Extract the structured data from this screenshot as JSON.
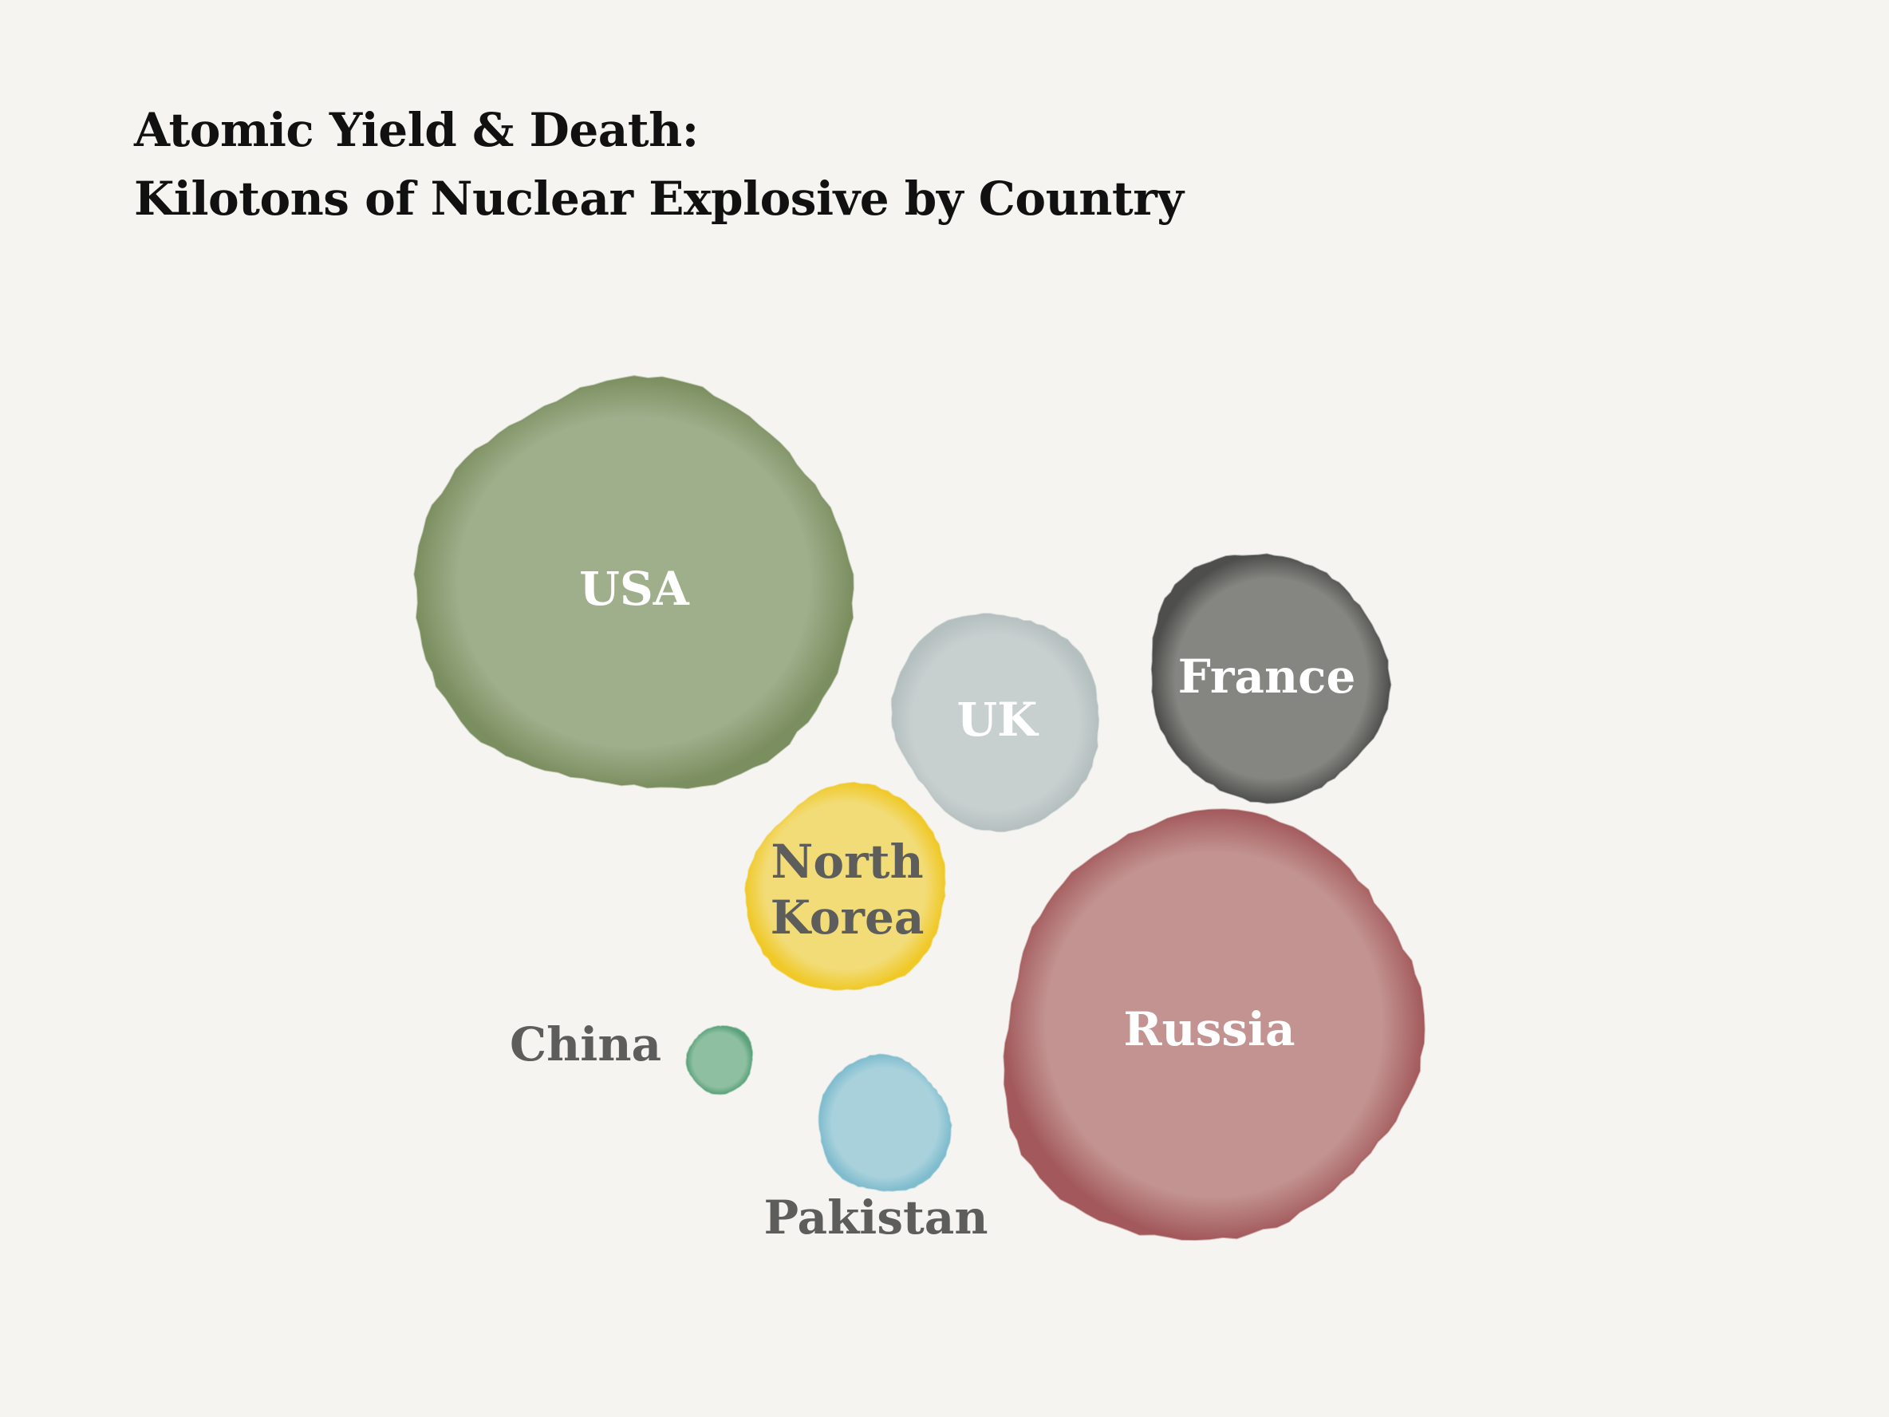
{
  "title_line1": "Atomic Yield & Death:",
  "title_line2": "Kilotons of Nuclear Explosive by Country",
  "chart_data": {
    "type": "bubble",
    "title": "Atomic Yield & Death: Kilotons of Nuclear Explosive by Country",
    "value_label": "Kilotons of Nuclear Explosive",
    "grid": false,
    "legend": "none",
    "bubbles": [
      {
        "label": "USA",
        "label_lines": [
          "USA"
        ],
        "value": 100,
        "color": "#9fae8b",
        "edge_color": "#7b8e5f",
        "label_color": "#ffffff",
        "label_position": "inside"
      },
      {
        "label": "Russia",
        "label_lines": [
          "Russia"
        ],
        "value": 100,
        "color": "#c29391",
        "edge_color": "#a3595b",
        "label_color": "#ffffff",
        "label_position": "inside"
      },
      {
        "label": "France",
        "label_lines": [
          "France"
        ],
        "value": 33,
        "color": "#858581",
        "edge_color": "#4e4e4c",
        "label_color": "#ffffff",
        "label_position": "inside"
      },
      {
        "label": "UK",
        "label_lines": [
          "UK"
        ],
        "value": 25,
        "color": "#c8d0cf",
        "edge_color": "#b4bfbf",
        "label_color": "#ffffff",
        "label_position": "inside"
      },
      {
        "label": "North Korea",
        "label_lines": [
          "North",
          "Korea"
        ],
        "value": 23,
        "color": "#f2dc78",
        "edge_color": "#f0c928",
        "label_color": "#5d5d5b",
        "label_position": "inside"
      },
      {
        "label": "Pakistan",
        "label_lines": [
          "Pakistan"
        ],
        "value": 10,
        "color": "#a8d1dc",
        "edge_color": "#7fbcce",
        "label_color": "#5d5d5b",
        "label_position": "below"
      },
      {
        "label": "China",
        "label_lines": [
          "China"
        ],
        "value": 2.5,
        "color": "#8dbfa0",
        "edge_color": "#5aa27a",
        "label_color": "#5d5d5b",
        "label_position": "left"
      }
    ]
  }
}
